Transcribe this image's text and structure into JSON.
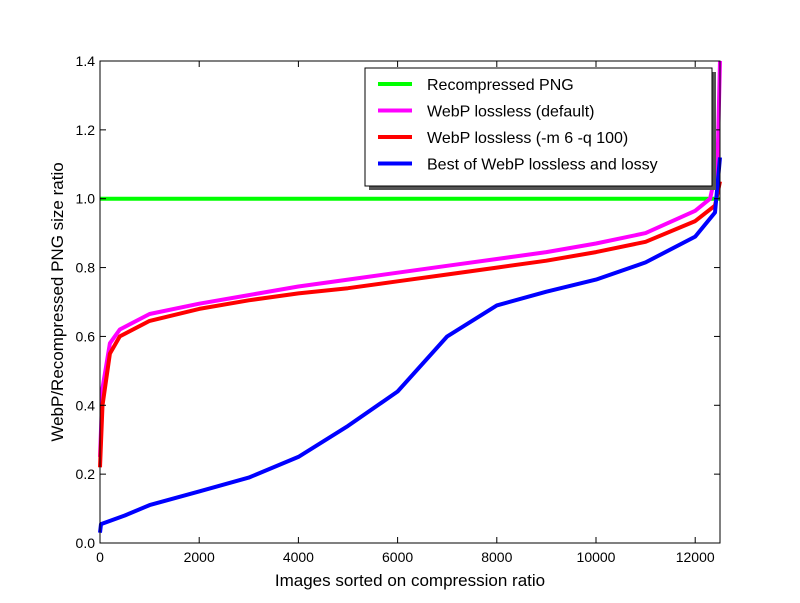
{
  "chart_data": {
    "type": "line",
    "title": "",
    "xlabel": "Images sorted on compression ratio",
    "ylabel": "WebP/Recompressed PNG size ratio",
    "xlim": [
      0,
      12500
    ],
    "ylim": [
      0.0,
      1.4
    ],
    "xticks": [
      "0",
      "2000",
      "4000",
      "6000",
      "8000",
      "10000",
      "12000"
    ],
    "xtick_values": [
      0,
      2000,
      4000,
      6000,
      8000,
      10000,
      12000
    ],
    "yticks": [
      "0.0",
      "0.2",
      "0.4",
      "0.6",
      "0.8",
      "1.0",
      "1.2",
      "1.4"
    ],
    "ytick_values": [
      0,
      0.2,
      0.4,
      0.6,
      0.8,
      1.0,
      1.2,
      1.4
    ],
    "grid": false,
    "legend_position": "top-right",
    "series": [
      {
        "name": "Recompressed PNG",
        "color": "#00ff00",
        "x": [
          0,
          12500
        ],
        "y": [
          1.0,
          1.0
        ]
      },
      {
        "name": "WebP lossless (default)",
        "color": "#ff00ff",
        "x": [
          0,
          50,
          200,
          400,
          1000,
          2000,
          3000,
          4000,
          5000,
          6000,
          7000,
          8000,
          9000,
          10000,
          11000,
          12000,
          12300,
          12450,
          12500
        ],
        "y": [
          0.25,
          0.45,
          0.58,
          0.62,
          0.665,
          0.695,
          0.72,
          0.745,
          0.765,
          0.785,
          0.805,
          0.825,
          0.845,
          0.87,
          0.9,
          0.965,
          1.0,
          1.1,
          1.4
        ]
      },
      {
        "name": "WebP lossless (-m 6 -q 100)",
        "color": "#ff0000",
        "x": [
          0,
          50,
          200,
          400,
          1000,
          2000,
          3000,
          4000,
          5000,
          6000,
          7000,
          8000,
          9000,
          10000,
          11000,
          12000,
          12400,
          12500
        ],
        "y": [
          0.22,
          0.4,
          0.55,
          0.6,
          0.645,
          0.68,
          0.705,
          0.725,
          0.74,
          0.76,
          0.78,
          0.8,
          0.82,
          0.845,
          0.875,
          0.935,
          0.98,
          1.05
        ]
      },
      {
        "name": "Best of WebP lossless and lossy",
        "color": "#0000ff",
        "x": [
          0,
          20,
          500,
          1000,
          2000,
          3000,
          4000,
          5000,
          6000,
          7000,
          8000,
          9000,
          10000,
          11000,
          12000,
          12400,
          12500
        ],
        "y": [
          0.03,
          0.055,
          0.08,
          0.11,
          0.15,
          0.19,
          0.25,
          0.34,
          0.44,
          0.6,
          0.69,
          0.73,
          0.765,
          0.815,
          0.89,
          0.96,
          1.12
        ]
      }
    ]
  }
}
